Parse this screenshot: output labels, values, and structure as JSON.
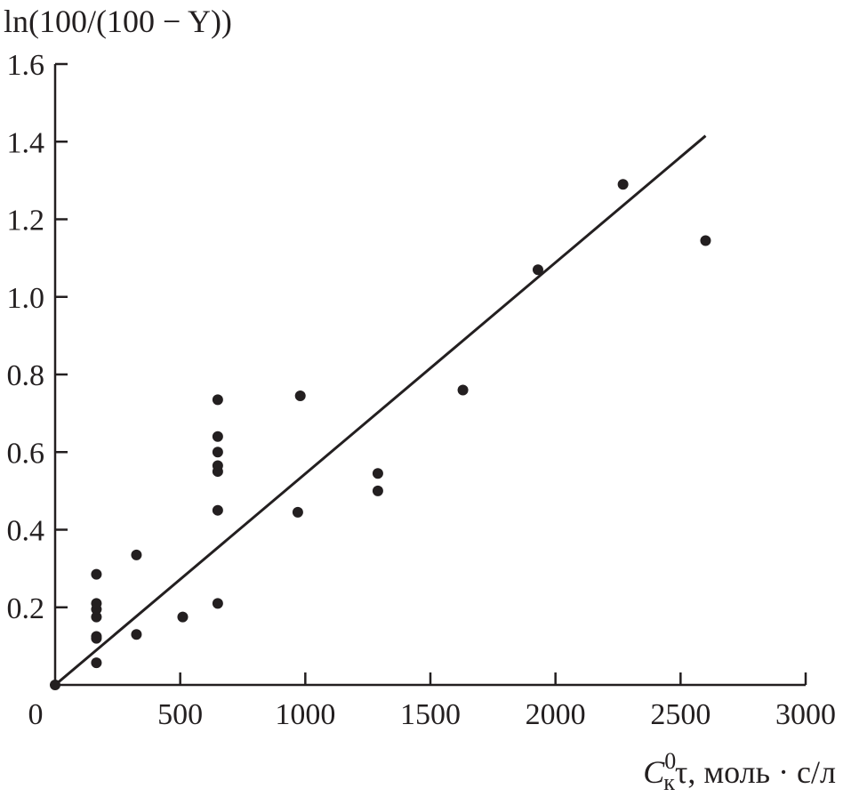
{
  "chart_data": {
    "type": "scatter",
    "ylabel": "ln(100/(100 − Y))",
    "xlabel": {
      "symbol": "C",
      "superscript": "0",
      "subscript": "к",
      "rest": "τ, моль · с/л"
    },
    "xlim": [
      0,
      3000
    ],
    "ylim": [
      0,
      1.6
    ],
    "x_ticks": [
      0,
      500,
      1000,
      1500,
      2000,
      2500,
      3000
    ],
    "x_tick_labels": [
      "0",
      "500",
      "1000",
      "1500",
      "2000",
      "2500",
      "3000"
    ],
    "y_ticks": [
      0.2,
      0.4,
      0.6,
      0.8,
      1.0,
      1.2,
      1.4,
      1.6
    ],
    "y_tick_labels": [
      "0.2",
      "0.4",
      "0.6",
      "0.8",
      "1.0",
      "1.2",
      "1.4",
      "1.6"
    ],
    "grid": false,
    "points": [
      {
        "x": 0,
        "y": 0.0
      },
      {
        "x": 165,
        "y": 0.057
      },
      {
        "x": 165,
        "y": 0.12
      },
      {
        "x": 165,
        "y": 0.125
      },
      {
        "x": 165,
        "y": 0.175
      },
      {
        "x": 165,
        "y": 0.195
      },
      {
        "x": 165,
        "y": 0.21
      },
      {
        "x": 165,
        "y": 0.285
      },
      {
        "x": 325,
        "y": 0.13
      },
      {
        "x": 325,
        "y": 0.335
      },
      {
        "x": 510,
        "y": 0.175
      },
      {
        "x": 650,
        "y": 0.21
      },
      {
        "x": 650,
        "y": 0.45
      },
      {
        "x": 650,
        "y": 0.55
      },
      {
        "x": 650,
        "y": 0.565
      },
      {
        "x": 650,
        "y": 0.6
      },
      {
        "x": 650,
        "y": 0.64
      },
      {
        "x": 650,
        "y": 0.735
      },
      {
        "x": 970,
        "y": 0.445
      },
      {
        "x": 980,
        "y": 0.745
      },
      {
        "x": 1290,
        "y": 0.5
      },
      {
        "x": 1290,
        "y": 0.545
      },
      {
        "x": 1630,
        "y": 0.76
      },
      {
        "x": 1930,
        "y": 1.07
      },
      {
        "x": 2270,
        "y": 1.29
      },
      {
        "x": 2600,
        "y": 1.145
      }
    ],
    "fit_line": {
      "x": [
        0,
        2600
      ],
      "y": [
        0,
        1.415
      ]
    },
    "colors": {
      "marks": "#231f20",
      "background": "#ffffff"
    }
  }
}
